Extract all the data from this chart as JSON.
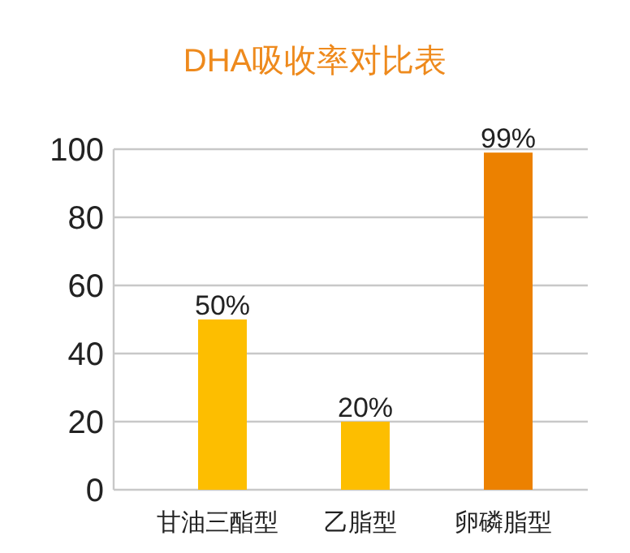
{
  "chart_data": {
    "type": "bar",
    "title": "DHA吸收率对比表",
    "categories": [
      "甘油三酯型",
      "乙脂型",
      "卵磷脂型"
    ],
    "values": [
      50,
      20,
      99
    ],
    "colors": [
      "#fdbe00",
      "#fdbe00",
      "#ec8100"
    ],
    "value_labels": [
      "50%",
      "20%",
      "99%"
    ],
    "ylim": [
      0,
      100
    ],
    "yticks": [
      0,
      20,
      40,
      60,
      80,
      100
    ],
    "grid": "y"
  }
}
